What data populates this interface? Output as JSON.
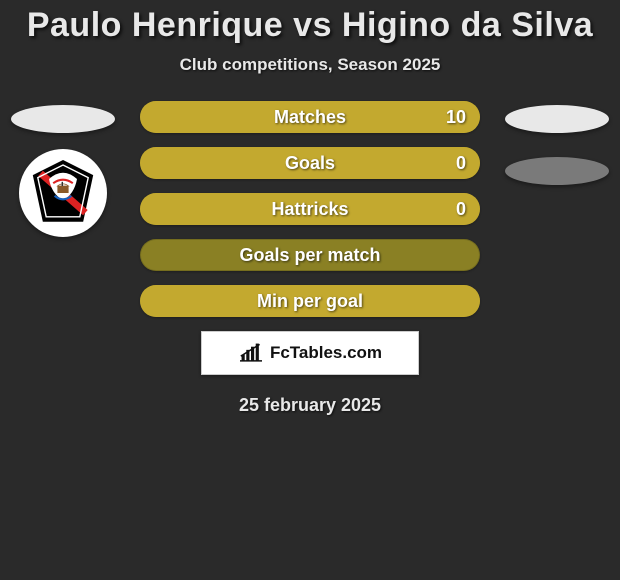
{
  "title": "Paulo Henrique vs Higino da Silva",
  "subtitle": "Club competitions, Season 2025",
  "date": "25 february 2025",
  "colors": {
    "background": "#2a2a2a",
    "left_oval": "#e8e8e8",
    "right_oval1": "#e8e8e8",
    "right_oval2": "#7a7a7a"
  },
  "badge": {
    "text": "FcTables.com",
    "text_color": "#111111",
    "background": "#ffffff"
  },
  "bars": [
    {
      "label": "Matches",
      "value_right": "10",
      "base_color": "#8a8024",
      "fill_color": "#c3a92f",
      "fill_width_percent": 100
    },
    {
      "label": "Goals",
      "value_right": "0",
      "base_color": "#8a8024",
      "fill_color": "#c3a92f",
      "fill_width_percent": 100
    },
    {
      "label": "Hattricks",
      "value_right": "0",
      "base_color": "#8a8024",
      "fill_color": "#c3a92f",
      "fill_width_percent": 100
    },
    {
      "label": "Goals per match",
      "value_right": "",
      "base_color": "#8a8024",
      "fill_color": "#8a8024",
      "fill_width_percent": 0
    },
    {
      "label": "Min per goal",
      "value_right": "",
      "base_color": "#8a8024",
      "fill_color": "#c3a92f",
      "fill_width_percent": 100
    }
  ]
}
